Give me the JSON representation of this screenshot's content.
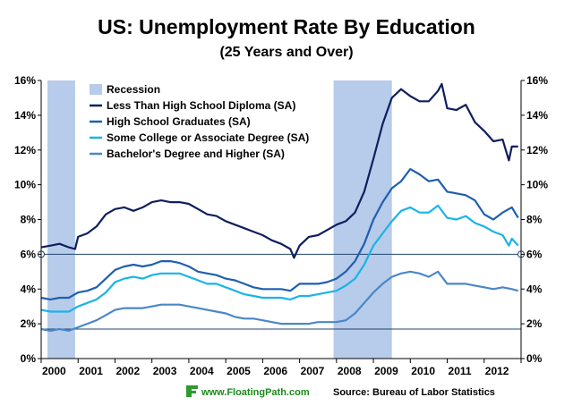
{
  "header": {
    "title": "US: Unemployment Rate By Education",
    "subtitle": "(25 Years and Over)"
  },
  "footer": {
    "brand": "www.FloatingPath.com",
    "source": "Source: Bureau of Labor Statistics",
    "brand_color": "#1a8a1a",
    "logo_icon": "floatingpath-logo-icon"
  },
  "chart_data": {
    "type": "line",
    "title": "US: Unemployment Rate By Education",
    "subtitle": "(25 Years and Over)",
    "xlim": [
      2000,
      2013
    ],
    "ylim": [
      0,
      16
    ],
    "x_tick_labels": [
      "2000",
      "2001",
      "2002",
      "2003",
      "2004",
      "2005",
      "2006",
      "2007",
      "2008",
      "2009",
      "2010",
      "2011",
      "2012"
    ],
    "y_tick_labels": [
      "0%",
      "2%",
      "4%",
      "6%",
      "8%",
      "10%",
      "12%",
      "14%",
      "16%"
    ],
    "y_tick_values": [
      0,
      2,
      4,
      6,
      8,
      10,
      12,
      14,
      16
    ],
    "grid": false,
    "reference_lines": [
      6.0,
      1.7
    ],
    "right_axis": true,
    "legend_position": "top-left",
    "recession": {
      "name": "Recession",
      "color": "#b7cbea",
      "periods": [
        [
          2000.17,
          2000.92
        ],
        [
          2007.92,
          2009.5
        ]
      ]
    },
    "series": [
      {
        "name": "Less Than High School Diploma (SA)",
        "color": "#0f1f5c",
        "points": [
          [
            2000.0,
            6.4
          ],
          [
            2000.25,
            6.5
          ],
          [
            2000.5,
            6.6
          ],
          [
            2000.75,
            6.4
          ],
          [
            2000.92,
            6.3
          ],
          [
            2001.0,
            7.0
          ],
          [
            2001.25,
            7.2
          ],
          [
            2001.5,
            7.6
          ],
          [
            2001.75,
            8.3
          ],
          [
            2002.0,
            8.6
          ],
          [
            2002.25,
            8.7
          ],
          [
            2002.5,
            8.5
          ],
          [
            2002.75,
            8.7
          ],
          [
            2003.0,
            9.0
          ],
          [
            2003.25,
            9.1
          ],
          [
            2003.5,
            9.0
          ],
          [
            2003.75,
            9.0
          ],
          [
            2004.0,
            8.9
          ],
          [
            2004.25,
            8.6
          ],
          [
            2004.5,
            8.3
          ],
          [
            2004.75,
            8.2
          ],
          [
            2005.0,
            7.9
          ],
          [
            2005.25,
            7.7
          ],
          [
            2005.5,
            7.5
          ],
          [
            2005.75,
            7.3
          ],
          [
            2006.0,
            7.1
          ],
          [
            2006.25,
            6.8
          ],
          [
            2006.5,
            6.6
          ],
          [
            2006.75,
            6.3
          ],
          [
            2006.85,
            5.8
          ],
          [
            2007.0,
            6.5
          ],
          [
            2007.25,
            7.0
          ],
          [
            2007.5,
            7.1
          ],
          [
            2007.75,
            7.4
          ],
          [
            2008.0,
            7.7
          ],
          [
            2008.25,
            7.9
          ],
          [
            2008.5,
            8.4
          ],
          [
            2008.75,
            9.6
          ],
          [
            2009.0,
            11.5
          ],
          [
            2009.25,
            13.5
          ],
          [
            2009.5,
            15.0
          ],
          [
            2009.75,
            15.5
          ],
          [
            2010.0,
            15.1
          ],
          [
            2010.25,
            14.8
          ],
          [
            2010.5,
            14.8
          ],
          [
            2010.75,
            15.4
          ],
          [
            2010.85,
            15.8
          ],
          [
            2011.0,
            14.4
          ],
          [
            2011.25,
            14.3
          ],
          [
            2011.5,
            14.6
          ],
          [
            2011.75,
            13.6
          ],
          [
            2012.0,
            13.1
          ],
          [
            2012.25,
            12.5
          ],
          [
            2012.5,
            12.6
          ],
          [
            2012.67,
            11.4
          ],
          [
            2012.75,
            12.2
          ],
          [
            2012.92,
            12.2
          ]
        ]
      },
      {
        "name": "High School Graduates (SA)",
        "color": "#1f5fb0",
        "points": [
          [
            2000.0,
            3.5
          ],
          [
            2000.25,
            3.4
          ],
          [
            2000.5,
            3.5
          ],
          [
            2000.75,
            3.5
          ],
          [
            2001.0,
            3.8
          ],
          [
            2001.25,
            3.9
          ],
          [
            2001.5,
            4.1
          ],
          [
            2001.75,
            4.6
          ],
          [
            2002.0,
            5.1
          ],
          [
            2002.25,
            5.3
          ],
          [
            2002.5,
            5.4
          ],
          [
            2002.75,
            5.3
          ],
          [
            2003.0,
            5.4
          ],
          [
            2003.25,
            5.6
          ],
          [
            2003.5,
            5.6
          ],
          [
            2003.75,
            5.5
          ],
          [
            2004.0,
            5.3
          ],
          [
            2004.25,
            5.0
          ],
          [
            2004.5,
            4.9
          ],
          [
            2004.75,
            4.8
          ],
          [
            2005.0,
            4.6
          ],
          [
            2005.25,
            4.5
          ],
          [
            2005.5,
            4.3
          ],
          [
            2005.75,
            4.1
          ],
          [
            2006.0,
            4.0
          ],
          [
            2006.25,
            4.0
          ],
          [
            2006.5,
            4.0
          ],
          [
            2006.75,
            3.9
          ],
          [
            2007.0,
            4.3
          ],
          [
            2007.25,
            4.3
          ],
          [
            2007.5,
            4.3
          ],
          [
            2007.75,
            4.4
          ],
          [
            2008.0,
            4.6
          ],
          [
            2008.25,
            5.0
          ],
          [
            2008.5,
            5.6
          ],
          [
            2008.75,
            6.6
          ],
          [
            2009.0,
            8.0
          ],
          [
            2009.25,
            9.0
          ],
          [
            2009.5,
            9.8
          ],
          [
            2009.75,
            10.2
          ],
          [
            2010.0,
            10.9
          ],
          [
            2010.25,
            10.6
          ],
          [
            2010.5,
            10.2
          ],
          [
            2010.75,
            10.3
          ],
          [
            2011.0,
            9.6
          ],
          [
            2011.25,
            9.5
          ],
          [
            2011.5,
            9.4
          ],
          [
            2011.75,
            9.1
          ],
          [
            2012.0,
            8.3
          ],
          [
            2012.25,
            8.0
          ],
          [
            2012.5,
            8.4
          ],
          [
            2012.75,
            8.7
          ],
          [
            2012.92,
            8.1
          ]
        ]
      },
      {
        "name": "Some College or Associate Degree (SA)",
        "color": "#19b4e8",
        "points": [
          [
            2000.0,
            2.8
          ],
          [
            2000.25,
            2.7
          ],
          [
            2000.5,
            2.7
          ],
          [
            2000.75,
            2.7
          ],
          [
            2001.0,
            3.0
          ],
          [
            2001.25,
            3.2
          ],
          [
            2001.5,
            3.4
          ],
          [
            2001.75,
            3.8
          ],
          [
            2002.0,
            4.4
          ],
          [
            2002.25,
            4.6
          ],
          [
            2002.5,
            4.7
          ],
          [
            2002.75,
            4.6
          ],
          [
            2003.0,
            4.8
          ],
          [
            2003.25,
            4.9
          ],
          [
            2003.5,
            4.9
          ],
          [
            2003.75,
            4.9
          ],
          [
            2004.0,
            4.7
          ],
          [
            2004.25,
            4.5
          ],
          [
            2004.5,
            4.3
          ],
          [
            2004.75,
            4.3
          ],
          [
            2005.0,
            4.1
          ],
          [
            2005.25,
            3.9
          ],
          [
            2005.5,
            3.7
          ],
          [
            2005.75,
            3.6
          ],
          [
            2006.0,
            3.5
          ],
          [
            2006.25,
            3.5
          ],
          [
            2006.5,
            3.5
          ],
          [
            2006.75,
            3.4
          ],
          [
            2007.0,
            3.6
          ],
          [
            2007.25,
            3.6
          ],
          [
            2007.5,
            3.7
          ],
          [
            2007.75,
            3.8
          ],
          [
            2008.0,
            3.9
          ],
          [
            2008.25,
            4.2
          ],
          [
            2008.5,
            4.6
          ],
          [
            2008.75,
            5.4
          ],
          [
            2009.0,
            6.5
          ],
          [
            2009.25,
            7.2
          ],
          [
            2009.5,
            7.9
          ],
          [
            2009.75,
            8.5
          ],
          [
            2010.0,
            8.7
          ],
          [
            2010.25,
            8.4
          ],
          [
            2010.5,
            8.4
          ],
          [
            2010.75,
            8.8
          ],
          [
            2011.0,
            8.1
          ],
          [
            2011.25,
            8.0
          ],
          [
            2011.5,
            8.2
          ],
          [
            2011.75,
            7.8
          ],
          [
            2012.0,
            7.6
          ],
          [
            2012.25,
            7.3
          ],
          [
            2012.5,
            7.1
          ],
          [
            2012.67,
            6.5
          ],
          [
            2012.75,
            6.9
          ],
          [
            2012.92,
            6.5
          ]
        ]
      },
      {
        "name": "Bachelor's Degree and Higher (SA)",
        "color": "#4a87c8",
        "points": [
          [
            2000.0,
            1.7
          ],
          [
            2000.25,
            1.6
          ],
          [
            2000.5,
            1.7
          ],
          [
            2000.75,
            1.6
          ],
          [
            2001.0,
            1.8
          ],
          [
            2001.25,
            2.0
          ],
          [
            2001.5,
            2.2
          ],
          [
            2001.75,
            2.5
          ],
          [
            2002.0,
            2.8
          ],
          [
            2002.25,
            2.9
          ],
          [
            2002.5,
            2.9
          ],
          [
            2002.75,
            2.9
          ],
          [
            2003.0,
            3.0
          ],
          [
            2003.25,
            3.1
          ],
          [
            2003.5,
            3.1
          ],
          [
            2003.75,
            3.1
          ],
          [
            2004.0,
            3.0
          ],
          [
            2004.25,
            2.9
          ],
          [
            2004.5,
            2.8
          ],
          [
            2004.75,
            2.7
          ],
          [
            2005.0,
            2.6
          ],
          [
            2005.25,
            2.4
          ],
          [
            2005.5,
            2.3
          ],
          [
            2005.75,
            2.3
          ],
          [
            2006.0,
            2.2
          ],
          [
            2006.25,
            2.1
          ],
          [
            2006.5,
            2.0
          ],
          [
            2006.75,
            2.0
          ],
          [
            2007.0,
            2.0
          ],
          [
            2007.25,
            2.0
          ],
          [
            2007.5,
            2.1
          ],
          [
            2007.75,
            2.1
          ],
          [
            2008.0,
            2.1
          ],
          [
            2008.25,
            2.2
          ],
          [
            2008.5,
            2.6
          ],
          [
            2008.75,
            3.2
          ],
          [
            2009.0,
            3.8
          ],
          [
            2009.25,
            4.3
          ],
          [
            2009.5,
            4.7
          ],
          [
            2009.75,
            4.9
          ],
          [
            2010.0,
            5.0
          ],
          [
            2010.25,
            4.9
          ],
          [
            2010.5,
            4.7
          ],
          [
            2010.75,
            5.0
          ],
          [
            2011.0,
            4.3
          ],
          [
            2011.25,
            4.3
          ],
          [
            2011.5,
            4.3
          ],
          [
            2011.75,
            4.2
          ],
          [
            2012.0,
            4.1
          ],
          [
            2012.25,
            4.0
          ],
          [
            2012.5,
            4.1
          ],
          [
            2012.75,
            4.0
          ],
          [
            2012.92,
            3.9
          ]
        ]
      }
    ]
  }
}
